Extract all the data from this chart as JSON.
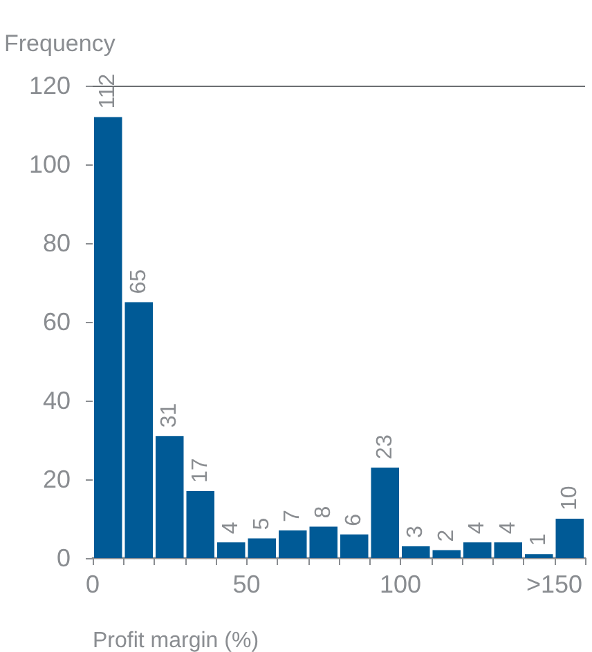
{
  "chart_data": {
    "type": "histogram",
    "xlabel": "Profit margin (%)",
    "ylabel": "Frequency",
    "bins": [
      0,
      10,
      20,
      30,
      40,
      50,
      60,
      70,
      80,
      90,
      100,
      110,
      120,
      130,
      140,
      150,
      160
    ],
    "values": [
      112,
      65,
      31,
      17,
      4,
      5,
      7,
      8,
      6,
      23,
      3,
      2,
      4,
      4,
      1,
      10
    ],
    "color": "#005a96",
    "data_labels": true,
    "xlim": [
      0,
      160
    ],
    "xticks": [
      0,
      {
        "value": 10,
        "label": null
      },
      {
        "value": 20,
        "label": null
      },
      {
        "value": 30,
        "label": null
      },
      {
        "value": 40,
        "label": null
      },
      50,
      {
        "value": 60,
        "label": null
      },
      {
        "value": 70,
        "label": null
      },
      {
        "value": 80,
        "label": null
      },
      {
        "value": 90,
        "label": null
      },
      100,
      {
        "value": 110,
        "label": null
      },
      {
        "value": 120,
        "label": null
      },
      {
        "value": 130,
        "label": null
      },
      {
        "value": 140,
        "label": null
      },
      {
        "value": 150,
        "label": ">150"
      },
      {
        "value": 160,
        "label": null
      }
    ],
    "ylim": [
      0,
      120
    ],
    "yticks": [
      0,
      20,
      40,
      60,
      80,
      100,
      120
    ],
    "ref_lines": [
      {
        "axis": "y",
        "value": 120,
        "label": null
      }
    ],
    "grid": false
  }
}
